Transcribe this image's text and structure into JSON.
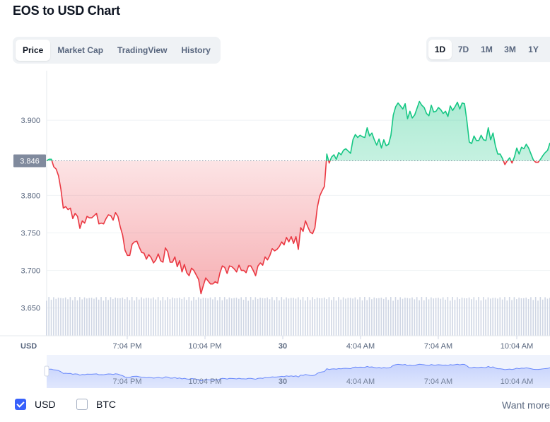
{
  "page": {
    "title": "EOS to USD Chart"
  },
  "tabs": [
    {
      "label": "Price",
      "active": true
    },
    {
      "label": "Market Cap",
      "active": false
    },
    {
      "label": "TradingView",
      "active": false
    },
    {
      "label": "History",
      "active": false
    }
  ],
  "ranges": [
    {
      "label": "1D",
      "active": true
    },
    {
      "label": "7D",
      "active": false
    },
    {
      "label": "1M",
      "active": false
    },
    {
      "label": "3M",
      "active": false
    },
    {
      "label": "1Y",
      "active": false
    }
  ],
  "legend": {
    "usd_label": "USD",
    "usd_checked": true,
    "btc_label": "BTC",
    "btc_checked": false
  },
  "want_more": "Want more",
  "colors": {
    "up": "#16c784",
    "down": "#ea3943",
    "navigator": "#3861fb",
    "grid": "#eff2f5",
    "volume": "#cfd6e4",
    "axis_text": "#58667e"
  },
  "chart_data": {
    "type": "line",
    "currency_label": "USD",
    "reference_value": 3.846,
    "reference_label": "3.846",
    "y_ticks": [
      "3.650",
      "3.700",
      "3.750",
      "3.800",
      "3.900"
    ],
    "ylim": [
      3.613,
      3.966
    ],
    "x_tick_labels": [
      {
        "label": "7:04 PM",
        "bold": false
      },
      {
        "label": "10:04 PM",
        "bold": false
      },
      {
        "label": "30",
        "bold": true
      },
      {
        "label": "4:04 AM",
        "bold": false
      },
      {
        "label": "7:04 AM",
        "bold": false
      },
      {
        "label": "10:04 AM",
        "bold": false
      }
    ],
    "grid": true,
    "values": [
      3.846,
      3.848,
      3.848,
      3.838,
      3.835,
      3.826,
      3.808,
      3.783,
      3.785,
      3.781,
      3.783,
      3.769,
      3.776,
      3.772,
      3.756,
      3.766,
      3.763,
      3.772,
      3.77,
      3.77,
      3.773,
      3.776,
      3.762,
      3.763,
      3.762,
      3.769,
      3.774,
      3.773,
      3.767,
      3.777,
      3.772,
      3.758,
      3.747,
      3.727,
      3.72,
      3.72,
      3.735,
      3.738,
      3.739,
      3.731,
      3.724,
      3.723,
      3.715,
      3.721,
      3.717,
      3.71,
      3.714,
      3.722,
      3.713,
      3.711,
      3.73,
      3.725,
      3.711,
      3.711,
      3.718,
      3.705,
      3.713,
      3.698,
      3.708,
      3.697,
      3.693,
      3.703,
      3.7,
      3.694,
      3.688,
      3.669,
      3.68,
      3.69,
      3.686,
      3.682,
      3.682,
      3.685,
      3.683,
      3.697,
      3.706,
      3.704,
      3.696,
      3.706,
      3.705,
      3.702,
      3.698,
      3.707,
      3.7,
      3.7,
      3.697,
      3.706,
      3.706,
      3.7,
      3.693,
      3.706,
      3.71,
      3.707,
      3.718,
      3.714,
      3.72,
      3.729,
      3.726,
      3.728,
      3.732,
      3.738,
      3.734,
      3.744,
      3.738,
      3.745,
      3.736,
      3.745,
      3.728,
      3.757,
      3.752,
      3.766,
      3.758,
      3.751,
      3.749,
      3.757,
      3.784,
      3.799,
      3.806,
      3.812,
      3.855,
      3.843,
      3.851,
      3.854,
      3.848,
      3.857,
      3.854,
      3.86,
      3.862,
      3.859,
      3.856,
      3.874,
      3.881,
      3.877,
      3.88,
      3.878,
      3.877,
      3.89,
      3.879,
      3.883,
      3.874,
      3.867,
      3.875,
      3.863,
      3.874,
      3.866,
      3.868,
      3.88,
      3.907,
      3.918,
      3.923,
      3.919,
      3.915,
      3.922,
      3.902,
      3.912,
      3.903,
      3.907,
      3.916,
      3.925,
      3.92,
      3.917,
      3.909,
      3.906,
      3.92,
      3.911,
      3.912,
      3.917,
      3.914,
      3.909,
      3.912,
      3.905,
      3.919,
      3.913,
      3.918,
      3.924,
      3.915,
      3.923,
      3.922,
      3.899,
      3.871,
      3.869,
      3.879,
      3.873,
      3.873,
      3.88,
      3.874,
      3.873,
      3.89,
      3.874,
      3.883,
      3.866,
      3.855,
      3.855,
      3.849,
      3.841,
      3.846,
      3.85,
      3.843,
      3.851,
      3.863,
      3.855,
      3.864,
      3.862,
      3.868,
      3.863,
      3.855,
      3.847,
      3.844,
      3.844,
      3.848,
      3.853,
      3.857,
      3.86,
      3.87
    ]
  }
}
